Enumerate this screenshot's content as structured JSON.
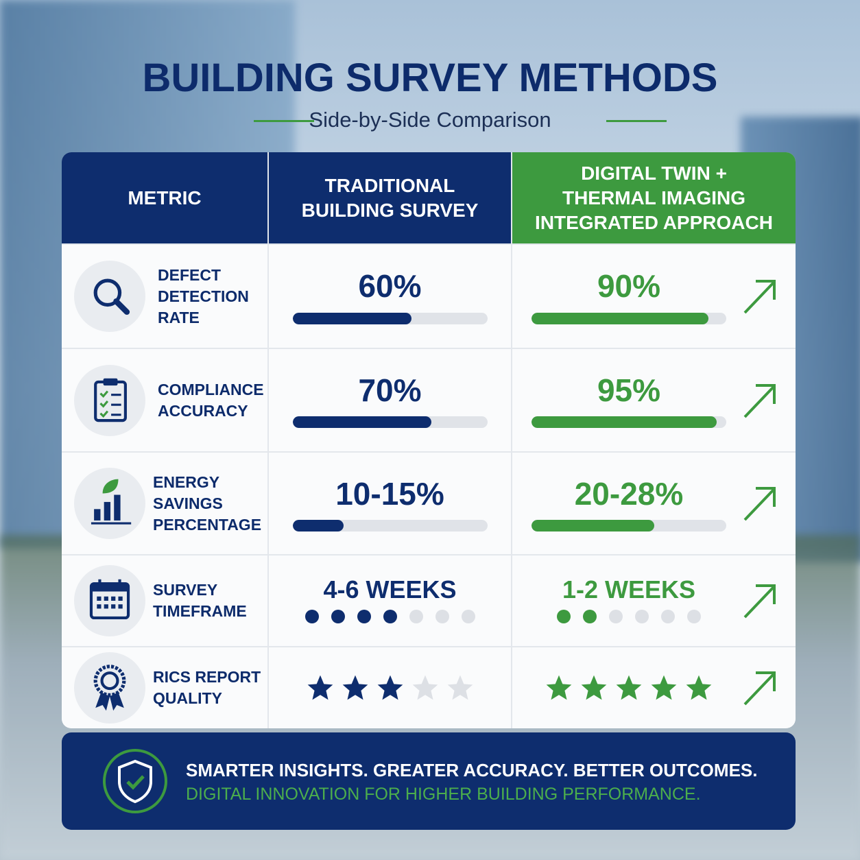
{
  "header": {
    "title": "BUILDING SURVEY METHODS",
    "subtitle": "Side-by-Side Comparison"
  },
  "table": {
    "columns": [
      "METRIC",
      "TRADITIONAL\nBUILDING SURVEY",
      "DIGITAL TWIN +\nTHERMAL IMAGING\nINTEGRATED APPROACH"
    ],
    "rows": [
      {
        "metric": "DEFECT\nDETECTION\nRATE",
        "traditional": {
          "value": "60%",
          "bar": 61
        },
        "digital": {
          "value": "90%",
          "bar": 91
        }
      },
      {
        "metric": "COMPLIANCE\nACCURACY",
        "traditional": {
          "value": "70%",
          "bar": 71
        },
        "digital": {
          "value": "95%",
          "bar": 95
        }
      },
      {
        "metric": "ENERGY\nSAVINGS\nPERCENTAGE",
        "traditional": {
          "value": "10-15%",
          "bar": 26
        },
        "digital": {
          "value": "20-28%",
          "bar": 63
        }
      },
      {
        "metric": "SURVEY\nTIMEFRAME",
        "traditional": {
          "value": "4-6 WEEKS",
          "rating": 4,
          "scale": 7
        },
        "digital": {
          "value": "1-2 WEEKS",
          "rating": 2,
          "scale": 6
        }
      },
      {
        "metric": "RICS REPORT\nQUALITY",
        "traditional": {
          "rating": 3,
          "scale": 5
        },
        "digital": {
          "rating": 5,
          "scale": 5
        }
      }
    ]
  },
  "footer": {
    "line1": "SMARTER INSIGHTS. GREATER ACCURACY. BETTER OUTCOMES.",
    "line2": "DIGITAL INNOVATION FOR HIGHER BUILDING PERFORMANCE."
  }
}
